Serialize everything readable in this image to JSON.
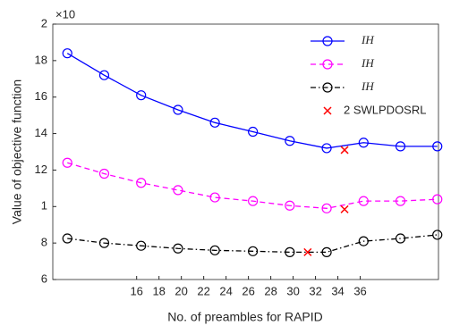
{
  "chart_data": {
    "type": "line",
    "xlabel": "No. of preambles for RAPID",
    "ylabel": "Value of objective function",
    "multiplier": "×10",
    "xlim": [
      8.5,
      43
    ],
    "xticks": [
      16,
      18,
      20,
      22,
      24,
      26,
      28,
      30,
      32,
      34,
      36
    ],
    "ylim": [
      6,
      20
    ],
    "yticks": [
      6,
      8,
      {
        "value": 10,
        "label": "1"
      },
      12,
      14,
      16,
      18,
      {
        "value": 20,
        "label": "2"
      }
    ],
    "x": [
      9.8,
      13.1,
      16.4,
      19.7,
      23.0,
      26.4,
      29.7,
      33.0,
      36.3,
      39.6,
      42.9
    ],
    "series": [
      {
        "name": "IH",
        "color": "#0000ff",
        "dash": "none",
        "values": [
          18.4,
          17.2,
          16.1,
          15.3,
          14.6,
          14.1,
          13.6,
          13.2,
          13.5,
          13.3,
          13.3
        ]
      },
      {
        "name": "IH",
        "color": "#ff00ff",
        "dash": "6 4",
        "values": [
          12.4,
          11.8,
          11.3,
          10.9,
          10.5,
          10.3,
          10.05,
          9.9,
          10.3,
          10.3,
          10.4
        ]
      },
      {
        "name": "IH",
        "color": "#000000",
        "dash": "6 3 1.5 3",
        "values": [
          8.25,
          8.0,
          7.85,
          7.7,
          7.6,
          7.55,
          7.5,
          7.5,
          8.1,
          8.25,
          8.45
        ]
      }
    ],
    "highlight": {
      "name": "2 SWLPDOSRL",
      "color": "#ff0000",
      "x": [
        34.6,
        34.6,
        31.3
      ],
      "values": [
        13.1,
        9.85,
        7.5
      ]
    }
  }
}
